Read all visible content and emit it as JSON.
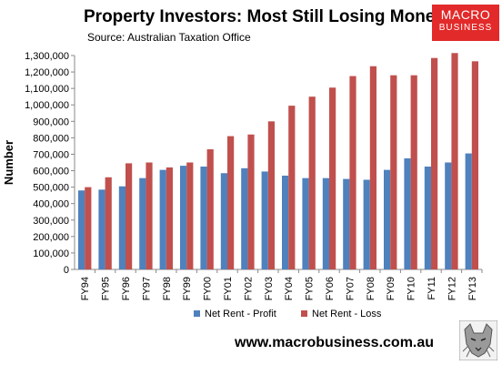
{
  "header": {
    "title": "Property Investors: Most Still Losing Money",
    "subtitle": "Source: Australian Taxation Office"
  },
  "logo": {
    "line1": "MACRO",
    "line2": "BUSINESS"
  },
  "footer": {
    "website": "www.macrobusiness.com.au"
  },
  "colors": {
    "profit": "#4f81bd",
    "loss": "#c0504d",
    "logo_bg": "#e22a2a"
  },
  "chart_data": {
    "type": "bar",
    "title": "Property Investors: Most Still Losing Money",
    "subtitle": "Source: Australian Taxation Office",
    "xlabel": "",
    "ylabel": "Number",
    "ylim": [
      0,
      1300000
    ],
    "ytick_step": 100000,
    "legend_position": "bottom",
    "grid": false,
    "categories": [
      "FY94",
      "FY95",
      "FY96",
      "FY97",
      "FY98",
      "FY99",
      "FY00",
      "FY01",
      "FY02",
      "FY03",
      "FY04",
      "FY05",
      "FY06",
      "FY07",
      "FY08",
      "FY09",
      "FY10",
      "FY11",
      "FY12",
      "FY13"
    ],
    "yticks": [
      "0",
      "100,000",
      "200,000",
      "300,000",
      "400,000",
      "500,000",
      "600,000",
      "700,000",
      "800,000",
      "900,000",
      "1,000,000",
      "1,100,000",
      "1,200,000",
      "1,300,000"
    ],
    "series": [
      {
        "name": "Net Rent - Profit",
        "color": "#4f81bd",
        "values": [
          480000,
          485000,
          505000,
          555000,
          605000,
          630000,
          625000,
          585000,
          615000,
          595000,
          570000,
          555000,
          555000,
          550000,
          545000,
          605000,
          675000,
          625000,
          650000,
          705000
        ]
      },
      {
        "name": "Net Rent - Loss",
        "color": "#c0504d",
        "values": [
          500000,
          560000,
          645000,
          650000,
          620000,
          650000,
          730000,
          810000,
          820000,
          900000,
          995000,
          1050000,
          1105000,
          1175000,
          1235000,
          1180000,
          1180000,
          1285000,
          1315000,
          1265000
        ]
      }
    ]
  }
}
